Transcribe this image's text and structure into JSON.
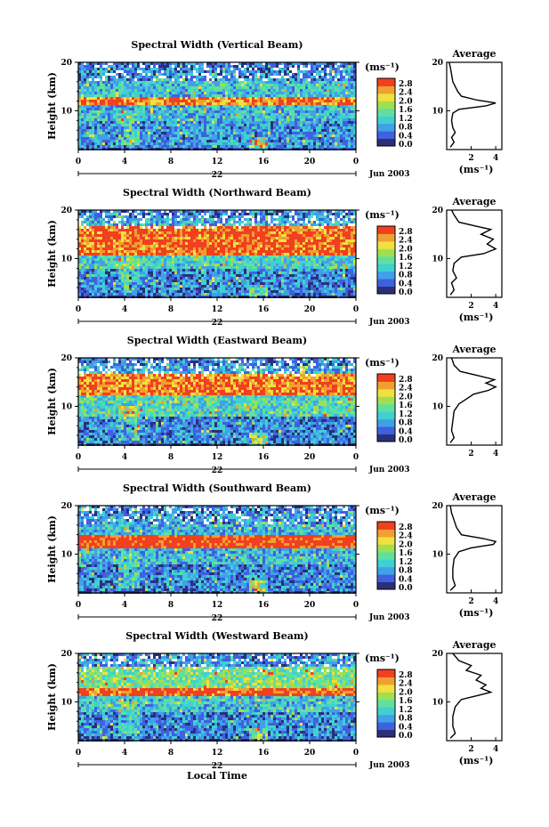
{
  "figure": {
    "xlabel": "Local Time",
    "date_label": "Jun 2003",
    "day_label": "22",
    "units_label": "(ms⁻¹)",
    "colorbar_ticks": [
      "2.8",
      "2.4",
      "2.0",
      "1.6",
      "1.2",
      "0.8",
      "0.4",
      "0.0"
    ],
    "colors": {
      "scale": [
        "#2a2f7a",
        "#4060e0",
        "#40a0e8",
        "#40d0d0",
        "#60e0a0",
        "#a0e050",
        "#f0e040",
        "#f0a030",
        "#f04020"
      ]
    }
  },
  "chart_data": [
    {
      "type": "heatmap",
      "title": "Spectral Width (Vertical Beam)",
      "ylabel": "Height (km)",
      "x_ticks": [
        "0",
        "4",
        "8",
        "12",
        "16",
        "20",
        "0"
      ],
      "y_ticks": [
        "20",
        "10"
      ],
      "xlim": [
        0,
        24
      ],
      "ylim": [
        2,
        20
      ],
      "value_range": [
        0.0,
        3.0
      ],
      "layers": [
        {
          "from": 2.5,
          "to": 8,
          "level": 0.8
        },
        {
          "from": 8,
          "to": 11,
          "level": 1.0
        },
        {
          "from": 11,
          "to": 12.8,
          "level": 2.6
        },
        {
          "from": 12.8,
          "to": 16,
          "level": 1.1
        },
        {
          "from": 16,
          "to": 19,
          "level": 0.7
        },
        {
          "from": 19,
          "to": 20,
          "level": 0.5
        }
      ],
      "average_profile": {
        "title": "Average",
        "xlabel": "(ms⁻¹)",
        "x_ticks": [
          "2",
          "4"
        ],
        "xlim": [
          0,
          4.5
        ],
        "y_ticks": [
          "20",
          "10"
        ],
        "ylim": [
          2,
          20
        ],
        "points": [
          [
            0.3,
            2.5
          ],
          [
            0.6,
            3.5
          ],
          [
            0.4,
            4.5
          ],
          [
            0.7,
            5.5
          ],
          [
            0.5,
            6.5
          ],
          [
            0.4,
            8
          ],
          [
            0.5,
            9.5
          ],
          [
            1.0,
            10.3
          ],
          [
            3.2,
            11
          ],
          [
            4.0,
            11.6
          ],
          [
            2.5,
            12.2
          ],
          [
            1.2,
            13
          ],
          [
            0.9,
            14
          ],
          [
            0.7,
            15
          ],
          [
            0.5,
            16
          ],
          [
            0.4,
            17.5
          ],
          [
            0.3,
            19
          ],
          [
            0.2,
            20
          ]
        ]
      }
    },
    {
      "type": "heatmap",
      "title": "Spectral Width (Northward Beam)",
      "ylabel": "Height (km)",
      "x_ticks": [
        "0",
        "4",
        "8",
        "12",
        "16",
        "20",
        "0"
      ],
      "y_ticks": [
        "20",
        "10"
      ],
      "xlim": [
        0,
        24
      ],
      "ylim": [
        2,
        20
      ],
      "value_range": [
        0.0,
        3.0
      ],
      "layers": [
        {
          "from": 2.5,
          "to": 8,
          "level": 0.7
        },
        {
          "from": 8,
          "to": 10.5,
          "level": 1.2
        },
        {
          "from": 10.5,
          "to": 16.5,
          "level": 2.7
        },
        {
          "from": 16.5,
          "to": 18.5,
          "level": 0.9
        },
        {
          "from": 18.5,
          "to": 20,
          "level": 0.6
        }
      ],
      "average_profile": {
        "title": "Average",
        "xlabel": "(ms⁻¹)",
        "x_ticks": [
          "2",
          "4"
        ],
        "xlim": [
          0,
          4.5
        ],
        "y_ticks": [
          "20",
          "10"
        ],
        "ylim": [
          2,
          20
        ],
        "points": [
          [
            0.3,
            2.5
          ],
          [
            0.6,
            3.5
          ],
          [
            0.4,
            5
          ],
          [
            0.8,
            6
          ],
          [
            0.5,
            7.5
          ],
          [
            0.6,
            9
          ],
          [
            1.2,
            10.3
          ],
          [
            3.0,
            11
          ],
          [
            4.0,
            12
          ],
          [
            3.3,
            13
          ],
          [
            3.8,
            14
          ],
          [
            2.8,
            15
          ],
          [
            3.6,
            16
          ],
          [
            2.2,
            16.8
          ],
          [
            1.0,
            17.5
          ],
          [
            0.6,
            19
          ],
          [
            0.4,
            20
          ]
        ]
      }
    },
    {
      "type": "heatmap",
      "title": "Spectral Width (Eastward Beam)",
      "ylabel": "Height (km)",
      "x_ticks": [
        "0",
        "4",
        "8",
        "12",
        "16",
        "20",
        "0"
      ],
      "y_ticks": [
        "20",
        "10"
      ],
      "xlim": [
        0,
        24
      ],
      "ylim": [
        2,
        20
      ],
      "value_range": [
        0.0,
        3.0
      ],
      "layers": [
        {
          "from": 2.5,
          "to": 8,
          "level": 0.7
        },
        {
          "from": 8,
          "to": 12.5,
          "level": 1.3
        },
        {
          "from": 12.5,
          "to": 16.5,
          "level": 2.6
        },
        {
          "from": 16.5,
          "to": 18.5,
          "level": 0.9
        },
        {
          "from": 18.5,
          "to": 20,
          "level": 0.6
        }
      ],
      "average_profile": {
        "title": "Average",
        "xlabel": "",
        "x_ticks": [
          "2",
          "4"
        ],
        "xlim": [
          0,
          4.5
        ],
        "y_ticks": [
          "20",
          "10"
        ],
        "ylim": [
          2,
          20
        ],
        "points": [
          [
            0.3,
            2.5
          ],
          [
            0.6,
            3.5
          ],
          [
            0.4,
            5
          ],
          [
            0.5,
            7
          ],
          [
            0.6,
            9
          ],
          [
            1.0,
            10.5
          ],
          [
            1.6,
            11.5
          ],
          [
            2.2,
            12.5
          ],
          [
            3.4,
            13.3
          ],
          [
            4.0,
            14
          ],
          [
            3.2,
            14.8
          ],
          [
            3.9,
            15.5
          ],
          [
            2.6,
            16.3
          ],
          [
            1.1,
            17.2
          ],
          [
            0.6,
            18.5
          ],
          [
            0.4,
            20
          ]
        ]
      }
    },
    {
      "type": "heatmap",
      "title": "Spectral Width (Southward Beam)",
      "ylabel": "Height (km)",
      "x_ticks": [
        "0",
        "4",
        "8",
        "12",
        "16",
        "20",
        "0"
      ],
      "y_ticks": [
        "20",
        "10"
      ],
      "xlim": [
        0,
        24
      ],
      "ylim": [
        2,
        20
      ],
      "value_range": [
        0.0,
        3.0
      ],
      "layers": [
        {
          "from": 2.5,
          "to": 8,
          "level": 0.7
        },
        {
          "from": 8,
          "to": 11,
          "level": 1.0
        },
        {
          "from": 11,
          "to": 13.8,
          "level": 2.9
        },
        {
          "from": 13.8,
          "to": 16,
          "level": 1.0
        },
        {
          "from": 16,
          "to": 18.5,
          "level": 0.8
        },
        {
          "from": 18.5,
          "to": 20,
          "level": 0.6
        }
      ],
      "average_profile": {
        "title": "Average",
        "xlabel": "(ms⁻¹)",
        "x_ticks": [
          "2",
          "4"
        ],
        "xlim": [
          0,
          4.5
        ],
        "y_ticks": [
          "20",
          "10"
        ],
        "ylim": [
          2,
          20
        ],
        "points": [
          [
            0.3,
            2.5
          ],
          [
            0.7,
            3.5
          ],
          [
            0.5,
            5
          ],
          [
            0.5,
            7
          ],
          [
            0.6,
            9
          ],
          [
            1.0,
            10.5
          ],
          [
            2.0,
            11.3
          ],
          [
            3.8,
            12
          ],
          [
            4.0,
            12.6
          ],
          [
            3.0,
            13.2
          ],
          [
            1.2,
            14
          ],
          [
            0.8,
            15.5
          ],
          [
            0.6,
            17
          ],
          [
            0.4,
            18.5
          ],
          [
            0.3,
            20
          ]
        ]
      }
    },
    {
      "type": "heatmap",
      "title": "Spectral Width (Westward Beam)",
      "ylabel": "Height (km)",
      "x_ticks": [
        "0",
        "4",
        "8",
        "12",
        "16",
        "20",
        "0"
      ],
      "y_ticks": [
        "20",
        "10"
      ],
      "xlim": [
        0,
        24
      ],
      "ylim": [
        2,
        20
      ],
      "value_range": [
        0.0,
        3.0
      ],
      "layers": [
        {
          "from": 2.5,
          "to": 8,
          "level": 0.7
        },
        {
          "from": 8,
          "to": 11,
          "level": 1.1
        },
        {
          "from": 11,
          "to": 12.8,
          "level": 2.8
        },
        {
          "from": 12.8,
          "to": 17,
          "level": 1.6
        },
        {
          "from": 17,
          "to": 19,
          "level": 0.8
        },
        {
          "from": 19,
          "to": 20,
          "level": 0.6
        }
      ],
      "average_profile": {
        "title": "Average",
        "xlabel": "(ms⁻¹)",
        "x_ticks": [
          "2",
          "4"
        ],
        "xlim": [
          0,
          4.5
        ],
        "y_ticks": [
          "20",
          "10"
        ],
        "ylim": [
          2,
          20
        ],
        "points": [
          [
            0.3,
            2.5
          ],
          [
            0.7,
            3.5
          ],
          [
            0.5,
            5
          ],
          [
            0.5,
            7
          ],
          [
            0.7,
            9
          ],
          [
            1.2,
            10.5
          ],
          [
            2.5,
            11.3
          ],
          [
            3.6,
            12
          ],
          [
            2.8,
            12.8
          ],
          [
            3.2,
            13.5
          ],
          [
            2.4,
            14.5
          ],
          [
            2.8,
            15.5
          ],
          [
            1.6,
            16.5
          ],
          [
            2.0,
            17.5
          ],
          [
            1.0,
            18.5
          ],
          [
            0.5,
            20
          ]
        ]
      }
    }
  ]
}
